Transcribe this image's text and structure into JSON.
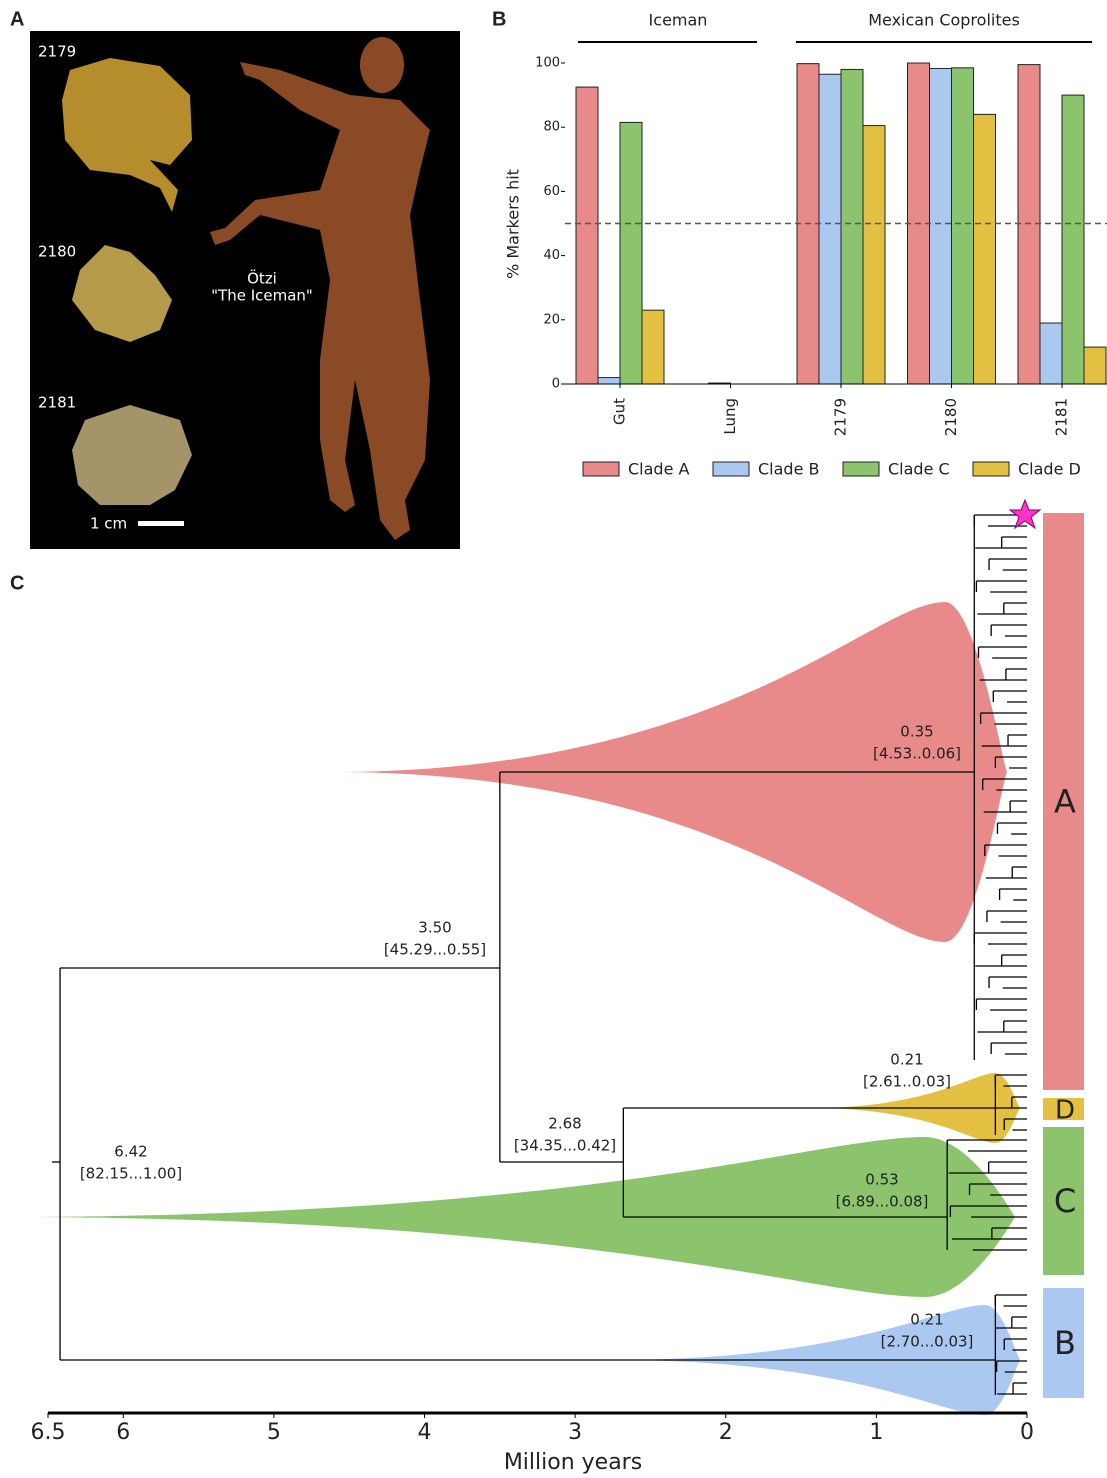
{
  "panel_labels": [
    "A",
    "B",
    "C"
  ],
  "panel_a": {
    "sample_labels": [
      "2179",
      "2180",
      "2181"
    ],
    "mummy_label": [
      "Ötzi",
      "\"The Iceman\""
    ],
    "scale_label": "1 cm"
  },
  "chart_data": [
    {
      "type": "bar",
      "ylabel": "% Markers hit",
      "group_labels": [
        "Iceman",
        "Mexican Coprolites"
      ],
      "categories": [
        "Gut",
        "Lung",
        "2179",
        "2180",
        "2181"
      ],
      "series": [
        {
          "name": "Clade A",
          "color": "#e88a8a",
          "values": [
            92.5,
            0,
            99.8,
            100,
            99.5
          ]
        },
        {
          "name": "Clade B",
          "color": "#aac8f0",
          "values": [
            2,
            0.3,
            96.5,
            98.3,
            19
          ]
        },
        {
          "name": "Clade C",
          "color": "#8cc46e",
          "values": [
            81.5,
            0,
            98,
            98.5,
            90
          ]
        },
        {
          "name": "Clade D",
          "color": "#e3c042",
          "values": [
            23,
            0,
            80.5,
            84,
            11.5
          ]
        }
      ],
      "ylim": [
        0,
        100
      ],
      "yticks": [
        0,
        20,
        40,
        60,
        80,
        100
      ],
      "reference_line": 50
    },
    {
      "type": "tree",
      "xlabel": "Million years",
      "xlim": [
        6.5,
        0
      ],
      "xticks": [
        6.5,
        6,
        5,
        4,
        3,
        2,
        1,
        0
      ],
      "clades": [
        {
          "name": "A",
          "color": "#e88a8a"
        },
        {
          "name": "D",
          "color": "#e3c042"
        },
        {
          "name": "C",
          "color": "#8cc46e"
        },
        {
          "name": "B",
          "color": "#aac8f0"
        }
      ],
      "nodes": [
        {
          "age": 0.35,
          "interval": "[4.53..0.06]"
        },
        {
          "age": 0.21,
          "interval": "[2.61..0.03]"
        },
        {
          "age": 0.53,
          "interval": "[6.89...0.08]"
        },
        {
          "age": 0.21,
          "interval": "[2.70...0.03]"
        },
        {
          "age": 2.68,
          "interval": "[34.35...0.42]"
        },
        {
          "age": {
            "value": 3.5,
            "label": "3.50"
          },
          "interval": "[45.29...0.55]"
        },
        {
          "age": 6.42,
          "interval": "[82.15...1.00]"
        }
      ]
    }
  ]
}
